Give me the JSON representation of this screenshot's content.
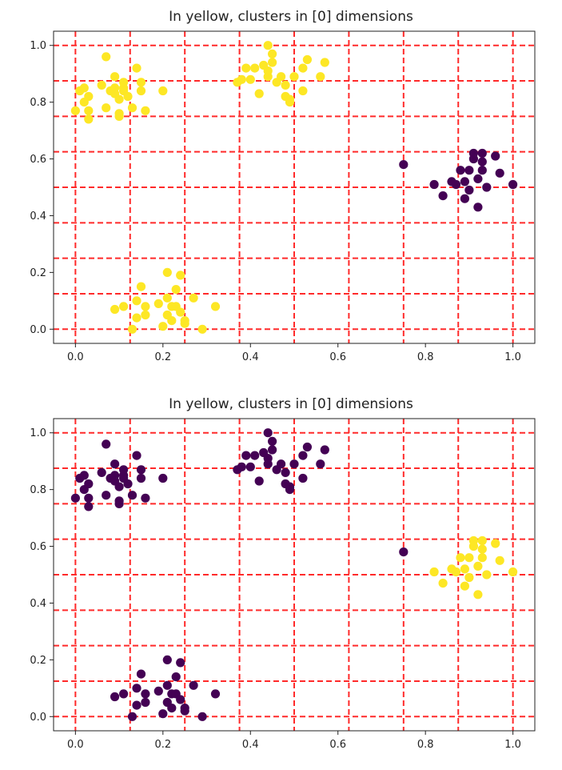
{
  "colors": {
    "yellow": "#fde725",
    "purple": "#440154",
    "grid": "#ff2a2a"
  },
  "chart_data": [
    {
      "type": "scatter",
      "title": "In yellow, clusters in [0] dimensions",
      "xlim": [
        -0.05,
        1.05
      ],
      "ylim": [
        -0.05,
        1.05
      ],
      "xticks": [
        "0.0",
        "0.2",
        "0.4",
        "0.6",
        "0.8",
        "1.0"
      ],
      "yticks": [
        "0.0",
        "0.2",
        "0.4",
        "0.6",
        "0.8",
        "1.0"
      ],
      "grid_lines": [
        0,
        0.125,
        0.25,
        0.375,
        0.5,
        0.625,
        0.75,
        0.875,
        1.0
      ],
      "grid": "dashed red at x and y multiples of 0.125",
      "clusters": [
        {
          "color": "yellow",
          "points": [
            [
              0.0,
              0.77
            ],
            [
              0.01,
              0.84
            ],
            [
              0.02,
              0.85
            ],
            [
              0.02,
              0.8
            ],
            [
              0.03,
              0.77
            ],
            [
              0.03,
              0.74
            ],
            [
              0.03,
              0.82
            ],
            [
              0.06,
              0.86
            ],
            [
              0.07,
              0.96
            ],
            [
              0.07,
              0.78
            ],
            [
              0.08,
              0.84
            ],
            [
              0.09,
              0.85
            ],
            [
              0.09,
              0.89
            ],
            [
              0.09,
              0.83
            ],
            [
              0.1,
              0.75
            ],
            [
              0.1,
              0.76
            ],
            [
              0.1,
              0.81
            ],
            [
              0.11,
              0.84
            ],
            [
              0.11,
              0.85
            ],
            [
              0.11,
              0.87
            ],
            [
              0.12,
              0.82
            ],
            [
              0.13,
              0.78
            ],
            [
              0.14,
              0.92
            ],
            [
              0.15,
              0.84
            ],
            [
              0.15,
              0.87
            ],
            [
              0.16,
              0.77
            ],
            [
              0.2,
              0.84
            ]
          ]
        },
        {
          "color": "yellow",
          "points": [
            [
              0.37,
              0.87
            ],
            [
              0.38,
              0.88
            ],
            [
              0.39,
              0.92
            ],
            [
              0.4,
              0.88
            ],
            [
              0.41,
              0.92
            ],
            [
              0.42,
              0.83
            ],
            [
              0.43,
              0.93
            ],
            [
              0.44,
              1.0
            ],
            [
              0.44,
              0.89
            ],
            [
              0.44,
              0.91
            ],
            [
              0.45,
              0.94
            ],
            [
              0.45,
              0.97
            ],
            [
              0.46,
              0.87
            ],
            [
              0.47,
              0.89
            ],
            [
              0.48,
              0.82
            ],
            [
              0.48,
              0.86
            ],
            [
              0.49,
              0.81
            ],
            [
              0.49,
              0.8
            ],
            [
              0.5,
              0.89
            ],
            [
              0.52,
              0.92
            ],
            [
              0.52,
              0.84
            ],
            [
              0.53,
              0.95
            ],
            [
              0.56,
              0.89
            ],
            [
              0.57,
              0.94
            ]
          ]
        },
        {
          "color": "purple",
          "points": [
            [
              0.75,
              0.58
            ],
            [
              0.82,
              0.51
            ],
            [
              0.84,
              0.47
            ],
            [
              0.86,
              0.52
            ],
            [
              0.87,
              0.51
            ],
            [
              0.88,
              0.56
            ],
            [
              0.89,
              0.52
            ],
            [
              0.89,
              0.46
            ],
            [
              0.9,
              0.49
            ],
            [
              0.9,
              0.56
            ],
            [
              0.91,
              0.6
            ],
            [
              0.91,
              0.62
            ],
            [
              0.92,
              0.53
            ],
            [
              0.92,
              0.43
            ],
            [
              0.93,
              0.59
            ],
            [
              0.93,
              0.56
            ],
            [
              0.93,
              0.62
            ],
            [
              0.94,
              0.5
            ],
            [
              0.96,
              0.61
            ],
            [
              0.97,
              0.55
            ],
            [
              1.0,
              0.51
            ]
          ]
        },
        {
          "color": "yellow",
          "points": [
            [
              0.09,
              0.07
            ],
            [
              0.11,
              0.08
            ],
            [
              0.13,
              0.0
            ],
            [
              0.14,
              0.1
            ],
            [
              0.14,
              0.04
            ],
            [
              0.15,
              0.15
            ],
            [
              0.16,
              0.05
            ],
            [
              0.16,
              0.08
            ],
            [
              0.19,
              0.09
            ],
            [
              0.2,
              0.01
            ],
            [
              0.21,
              0.2
            ],
            [
              0.21,
              0.05
            ],
            [
              0.21,
              0.11
            ],
            [
              0.22,
              0.08
            ],
            [
              0.22,
              0.03
            ],
            [
              0.23,
              0.14
            ],
            [
              0.23,
              0.08
            ],
            [
              0.24,
              0.06
            ],
            [
              0.24,
              0.19
            ],
            [
              0.25,
              0.02
            ],
            [
              0.25,
              0.03
            ],
            [
              0.27,
              0.11
            ],
            [
              0.29,
              0.0
            ],
            [
              0.32,
              0.08
            ]
          ]
        }
      ]
    },
    {
      "type": "scatter",
      "title": "In yellow, clusters in [0] dimensions",
      "xlim": [
        -0.05,
        1.05
      ],
      "ylim": [
        -0.05,
        1.05
      ],
      "xticks": [
        "0.0",
        "0.2",
        "0.4",
        "0.6",
        "0.8",
        "1.0"
      ],
      "yticks": [
        "0.0",
        "0.2",
        "0.4",
        "0.6",
        "0.8",
        "1.0"
      ],
      "grid_lines": [
        0,
        0.125,
        0.25,
        0.375,
        0.5,
        0.625,
        0.75,
        0.875,
        1.0
      ],
      "grid": "dashed red at x and y multiples of 0.125",
      "clusters": [
        {
          "color": "purple",
          "points": [
            [
              0.0,
              0.77
            ],
            [
              0.01,
              0.84
            ],
            [
              0.02,
              0.85
            ],
            [
              0.02,
              0.8
            ],
            [
              0.03,
              0.77
            ],
            [
              0.03,
              0.74
            ],
            [
              0.03,
              0.82
            ],
            [
              0.06,
              0.86
            ],
            [
              0.07,
              0.96
            ],
            [
              0.07,
              0.78
            ],
            [
              0.08,
              0.84
            ],
            [
              0.09,
              0.85
            ],
            [
              0.09,
              0.89
            ],
            [
              0.09,
              0.83
            ],
            [
              0.1,
              0.75
            ],
            [
              0.1,
              0.76
            ],
            [
              0.1,
              0.81
            ],
            [
              0.11,
              0.84
            ],
            [
              0.11,
              0.85
            ],
            [
              0.11,
              0.87
            ],
            [
              0.12,
              0.82
            ],
            [
              0.13,
              0.78
            ],
            [
              0.14,
              0.92
            ],
            [
              0.15,
              0.84
            ],
            [
              0.15,
              0.87
            ],
            [
              0.16,
              0.77
            ],
            [
              0.2,
              0.84
            ]
          ]
        },
        {
          "color": "purple",
          "points": [
            [
              0.37,
              0.87
            ],
            [
              0.38,
              0.88
            ],
            [
              0.39,
              0.92
            ],
            [
              0.4,
              0.88
            ],
            [
              0.41,
              0.92
            ],
            [
              0.42,
              0.83
            ],
            [
              0.43,
              0.93
            ],
            [
              0.44,
              1.0
            ],
            [
              0.44,
              0.89
            ],
            [
              0.44,
              0.91
            ],
            [
              0.45,
              0.94
            ],
            [
              0.45,
              0.97
            ],
            [
              0.46,
              0.87
            ],
            [
              0.47,
              0.89
            ],
            [
              0.48,
              0.82
            ],
            [
              0.48,
              0.86
            ],
            [
              0.49,
              0.81
            ],
            [
              0.49,
              0.8
            ],
            [
              0.5,
              0.89
            ],
            [
              0.52,
              0.92
            ],
            [
              0.52,
              0.84
            ],
            [
              0.53,
              0.95
            ],
            [
              0.56,
              0.89
            ],
            [
              0.57,
              0.94
            ]
          ]
        },
        {
          "color": "purple",
          "points": [
            [
              0.75,
              0.58
            ]
          ]
        },
        {
          "color": "yellow",
          "points": [
            [
              0.82,
              0.51
            ],
            [
              0.84,
              0.47
            ],
            [
              0.86,
              0.52
            ],
            [
              0.87,
              0.51
            ],
            [
              0.88,
              0.56
            ],
            [
              0.89,
              0.52
            ],
            [
              0.89,
              0.46
            ],
            [
              0.9,
              0.49
            ],
            [
              0.9,
              0.56
            ],
            [
              0.91,
              0.6
            ],
            [
              0.91,
              0.62
            ],
            [
              0.92,
              0.53
            ],
            [
              0.92,
              0.43
            ],
            [
              0.93,
              0.59
            ],
            [
              0.93,
              0.56
            ],
            [
              0.93,
              0.62
            ],
            [
              0.94,
              0.5
            ],
            [
              0.96,
              0.61
            ],
            [
              0.97,
              0.55
            ],
            [
              1.0,
              0.51
            ]
          ]
        },
        {
          "color": "purple",
          "points": [
            [
              0.09,
              0.07
            ],
            [
              0.11,
              0.08
            ],
            [
              0.13,
              0.0
            ],
            [
              0.14,
              0.1
            ],
            [
              0.14,
              0.04
            ],
            [
              0.15,
              0.15
            ],
            [
              0.16,
              0.05
            ],
            [
              0.16,
              0.08
            ],
            [
              0.19,
              0.09
            ],
            [
              0.2,
              0.01
            ],
            [
              0.21,
              0.2
            ],
            [
              0.21,
              0.05
            ],
            [
              0.21,
              0.11
            ],
            [
              0.22,
              0.08
            ],
            [
              0.22,
              0.03
            ],
            [
              0.23,
              0.14
            ],
            [
              0.23,
              0.08
            ],
            [
              0.24,
              0.06
            ],
            [
              0.24,
              0.19
            ],
            [
              0.25,
              0.02
            ],
            [
              0.25,
              0.03
            ],
            [
              0.27,
              0.11
            ],
            [
              0.29,
              0.0
            ],
            [
              0.32,
              0.08
            ]
          ]
        }
      ]
    }
  ]
}
